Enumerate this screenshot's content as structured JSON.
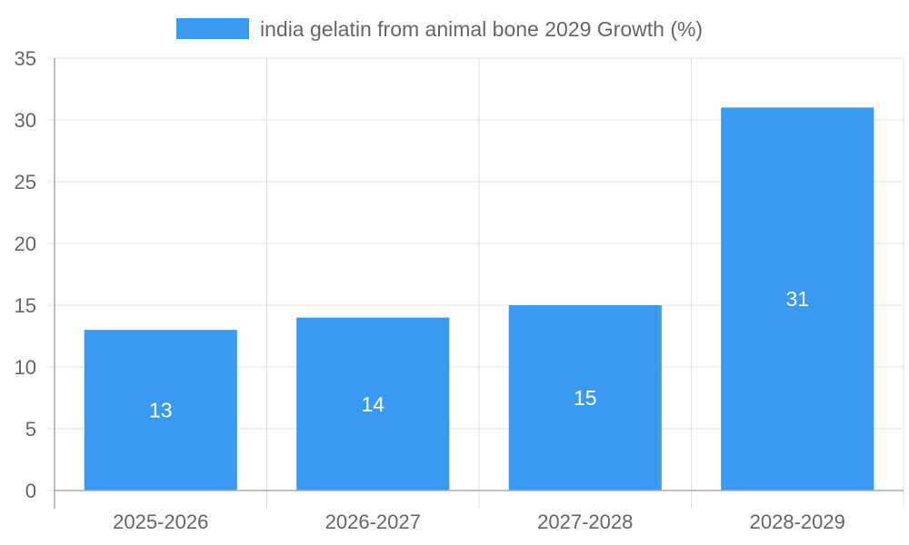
{
  "chart_data": {
    "type": "bar",
    "categories": [
      "2025-2026",
      "2026-2027",
      "2027-2028",
      "2028-2029"
    ],
    "series": [
      {
        "name": "india gelatin from animal bone 2029 Growth (%)",
        "values": [
          13,
          14,
          15,
          31
        ],
        "color": "#3a99f0"
      }
    ],
    "ylim": [
      0,
      35
    ],
    "yticks": [
      0,
      5,
      10,
      15,
      20,
      25,
      30,
      35
    ],
    "grid": true,
    "legend_position": "top",
    "data_labels": true,
    "colors": {
      "grid": "#e0e0e0",
      "axis": "#aaaaaa",
      "tick_text": "#666666",
      "data_label_text": "#ffffff"
    }
  }
}
